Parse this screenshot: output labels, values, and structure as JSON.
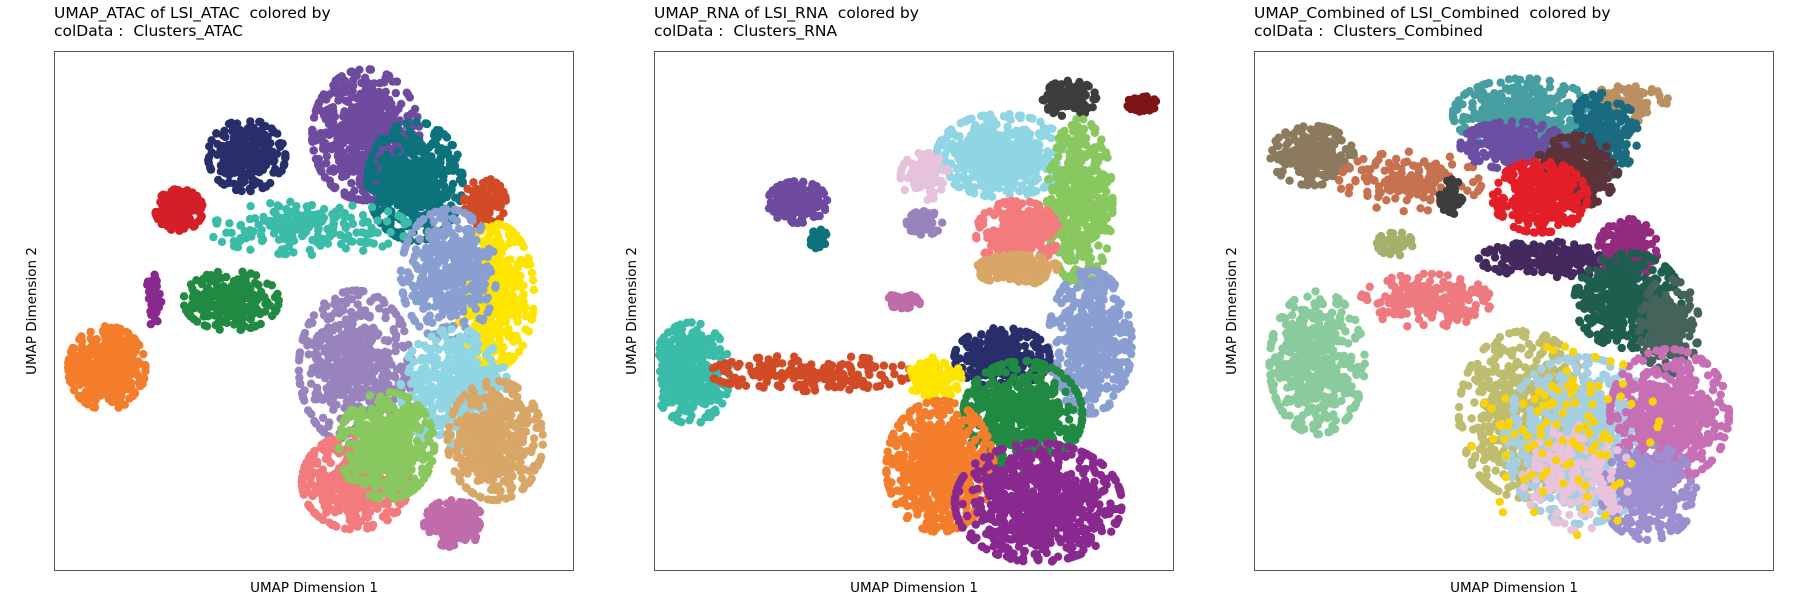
{
  "chart_data": [
    {
      "type": "scatter",
      "title_line1": "UMAP_ATAC of LSI_ATAC  colored by",
      "title_line2": "colData :  Clusters_ATAC",
      "xlabel": "UMAP Dimension 1",
      "ylabel": "UMAP Dimension 2",
      "xlim": [
        0,
        100
      ],
      "ylim": [
        0,
        100
      ],
      "grid": false,
      "legend": "none",
      "clusters": [
        {
          "color": "#F47D2B",
          "cx": 10,
          "cy": 39,
          "rx": 6.5,
          "ry": 7,
          "n": 420
        },
        {
          "color": "#D51F26",
          "cx": 24,
          "cy": 69.5,
          "rx": 4,
          "ry": 3.5,
          "n": 160
        },
        {
          "color": "#272E6A",
          "cx": 37,
          "cy": 80,
          "rx": 6.5,
          "ry": 6,
          "n": 240
        },
        {
          "color": "#6E4B9E",
          "cx": 60,
          "cy": 84,
          "rx": 9,
          "ry": 11,
          "n": 620
        },
        {
          "color": "#0C727C",
          "cx": 69.5,
          "cy": 75,
          "rx": 8,
          "ry": 10,
          "n": 480
        },
        {
          "color": "#3BBCA8",
          "cx": 49,
          "cy": 66,
          "rx": 17,
          "ry": 4.5,
          "n": 200
        },
        {
          "color": "#208A42",
          "cx": 34,
          "cy": 52,
          "rx": 8,
          "ry": 5,
          "n": 230
        },
        {
          "color": "#89288F",
          "cx": 19,
          "cy": 52,
          "rx": 1.3,
          "ry": 4.5,
          "n": 60
        },
        {
          "color": "#D24B27",
          "cx": 83,
          "cy": 71,
          "rx": 3.5,
          "ry": 4,
          "n": 120
        },
        {
          "color": "#FEE500",
          "cx": 85,
          "cy": 53,
          "rx": 6.5,
          "ry": 12,
          "n": 420
        },
        {
          "color": "#8A9FD1",
          "cx": 76,
          "cy": 57,
          "rx": 8,
          "ry": 11,
          "n": 400
        },
        {
          "color": "#9983BD",
          "cx": 58,
          "cy": 39,
          "rx": 9.5,
          "ry": 13,
          "n": 560
        },
        {
          "color": "#90D5E4",
          "cx": 77,
          "cy": 35,
          "rx": 9,
          "ry": 10,
          "n": 420
        },
        {
          "color": "#D8A767",
          "cx": 85,
          "cy": 25,
          "rx": 8,
          "ry": 10,
          "n": 420
        },
        {
          "color": "#F37B7D",
          "cx": 58,
          "cy": 17,
          "rx": 9,
          "ry": 8,
          "n": 480
        },
        {
          "color": "#89C75F",
          "cx": 64,
          "cy": 24,
          "rx": 8,
          "ry": 9,
          "n": 480
        },
        {
          "color": "#C06CAB",
          "cx": 77,
          "cy": 9,
          "rx": 5,
          "ry": 4,
          "n": 180
        }
      ]
    },
    {
      "type": "scatter",
      "title_line1": "UMAP_RNA of LSI_RNA  colored by",
      "title_line2": "colData :  Clusters_RNA",
      "xlabel": "UMAP Dimension 1",
      "ylabel": "UMAP Dimension 2",
      "xlim": [
        0,
        100
      ],
      "ylim": [
        0,
        100
      ],
      "grid": false,
      "legend": "none",
      "clusters": [
        {
          "color": "#3BBCA8",
          "cx": 7,
          "cy": 38,
          "rx": 6.5,
          "ry": 8.5,
          "n": 420
        },
        {
          "color": "#D24B27",
          "cx": 30,
          "cy": 38,
          "rx": 17,
          "ry": 3,
          "n": 200
        },
        {
          "color": "#6E4B9E",
          "cx": 27.5,
          "cy": 71,
          "rx": 5,
          "ry": 3.5,
          "n": 200
        },
        {
          "color": "#0C727C",
          "cx": 31.5,
          "cy": 64,
          "rx": 1.5,
          "ry": 1.7,
          "n": 40
        },
        {
          "color": "#3D3D3D",
          "cx": 80,
          "cy": 91,
          "rx": 4.5,
          "ry": 3,
          "n": 120
        },
        {
          "color": "#7E1416",
          "cx": 94,
          "cy": 90,
          "rx": 2.5,
          "ry": 1.3,
          "n": 60
        },
        {
          "color": "#90D5E4",
          "cx": 67,
          "cy": 80,
          "rx": 11,
          "ry": 7,
          "n": 520
        },
        {
          "color": "#89C75F",
          "cx": 82,
          "cy": 71,
          "rx": 5.5,
          "ry": 14,
          "n": 480
        },
        {
          "color": "#F37B7D",
          "cx": 70,
          "cy": 65,
          "rx": 7,
          "ry": 5.5,
          "n": 300
        },
        {
          "color": "#E6C2DC",
          "cx": 52,
          "cy": 76,
          "rx": 4,
          "ry": 4,
          "n": 100
        },
        {
          "color": "#9983BD",
          "cx": 52,
          "cy": 67,
          "rx": 3,
          "ry": 2,
          "n": 80
        },
        {
          "color": "#D8A767",
          "cx": 70,
          "cy": 58,
          "rx": 7,
          "ry": 2.5,
          "n": 200
        },
        {
          "color": "#C06CAB",
          "cx": 48,
          "cy": 52,
          "rx": 3,
          "ry": 1.3,
          "n": 60
        },
        {
          "color": "#8A9FD1",
          "cx": 84,
          "cy": 44,
          "rx": 7,
          "ry": 12,
          "n": 480
        },
        {
          "color": "#272E6A",
          "cx": 67,
          "cy": 41,
          "rx": 8,
          "ry": 5,
          "n": 300
        },
        {
          "color": "#FEE500",
          "cx": 54,
          "cy": 37,
          "rx": 4.5,
          "ry": 3.5,
          "n": 120
        },
        {
          "color": "#208A42",
          "cx": 71,
          "cy": 30,
          "rx": 10,
          "ry": 9,
          "n": 520
        },
        {
          "color": "#F47D2B",
          "cx": 55,
          "cy": 20,
          "rx": 9,
          "ry": 11,
          "n": 620
        },
        {
          "color": "#89288F",
          "cx": 74,
          "cy": 13,
          "rx": 14,
          "ry": 10,
          "n": 760
        }
      ]
    },
    {
      "type": "scatter",
      "title_line1": "UMAP_Combined of LSI_Combined  colored by",
      "title_line2": "colData :  Clusters_Combined",
      "xlabel": "UMAP Dimension 1",
      "ylabel": "UMAP Dimension 2",
      "xlim": [
        0,
        100
      ],
      "ylim": [
        0,
        100
      ],
      "grid": false,
      "legend": "none",
      "clusters": [
        {
          "color": "#8ACB9E",
          "cx": 12,
          "cy": 40,
          "rx": 8,
          "ry": 12,
          "n": 480
        },
        {
          "color": "#EE7A80",
          "cx": 33,
          "cy": 52,
          "rx": 11,
          "ry": 4.5,
          "n": 220
        },
        {
          "color": "#8C7A5E",
          "cx": 11,
          "cy": 80,
          "rx": 7,
          "ry": 5,
          "n": 260
        },
        {
          "color": "#C6714F",
          "cx": 30,
          "cy": 75,
          "rx": 12,
          "ry": 5,
          "n": 160
        },
        {
          "color": "#BA9060",
          "cx": 72,
          "cy": 90,
          "rx": 7,
          "ry": 3,
          "n": 100
        },
        {
          "color": "#469EA1",
          "cx": 52,
          "cy": 88,
          "rx": 12,
          "ry": 6,
          "n": 420
        },
        {
          "color": "#1A6B80",
          "cx": 67,
          "cy": 84,
          "rx": 6,
          "ry": 7,
          "n": 260
        },
        {
          "color": "#6A4FA3",
          "cx": 50,
          "cy": 82,
          "rx": 9,
          "ry": 4,
          "n": 260
        },
        {
          "color": "#5A3438",
          "cx": 62,
          "cy": 77,
          "rx": 7,
          "ry": 6,
          "n": 300
        },
        {
          "color": "#E41E26",
          "cx": 55,
          "cy": 72,
          "rx": 8,
          "ry": 6,
          "n": 300
        },
        {
          "color": "#3D3D3D",
          "cx": 38,
          "cy": 72,
          "rx": 2,
          "ry": 3,
          "n": 50
        },
        {
          "color": "#A7B06B",
          "cx": 27,
          "cy": 63,
          "rx": 3,
          "ry": 2,
          "n": 50
        },
        {
          "color": "#43295E",
          "cx": 57,
          "cy": 60,
          "rx": 12,
          "ry": 3,
          "n": 240
        },
        {
          "color": "#922A7E",
          "cx": 72,
          "cy": 62,
          "rx": 5,
          "ry": 5,
          "n": 160
        },
        {
          "color": "#1F5E4E",
          "cx": 72,
          "cy": 52,
          "rx": 9,
          "ry": 8,
          "n": 420
        },
        {
          "color": "#44645B",
          "cx": 80,
          "cy": 47,
          "rx": 5,
          "ry": 8,
          "n": 200
        },
        {
          "color": "#BEBC6E",
          "cx": 52,
          "cy": 30,
          "rx": 11,
          "ry": 14,
          "n": 620
        },
        {
          "color": "#A6CEE3",
          "cx": 63,
          "cy": 25,
          "rx": 13,
          "ry": 14,
          "n": 760
        },
        {
          "color": "#C86EB4",
          "cx": 80,
          "cy": 30,
          "rx": 10,
          "ry": 11,
          "n": 560
        },
        {
          "color": "#9D8ED0",
          "cx": 76,
          "cy": 15,
          "rx": 8,
          "ry": 8,
          "n": 320
        },
        {
          "color": "#E9C3DC",
          "cx": 62,
          "cy": 18,
          "rx": 9,
          "ry": 9,
          "n": 160
        },
        {
          "color": "#F9D20A",
          "cx": 60,
          "cy": 25,
          "rx": 16,
          "ry": 16,
          "n": 100
        }
      ]
    }
  ]
}
